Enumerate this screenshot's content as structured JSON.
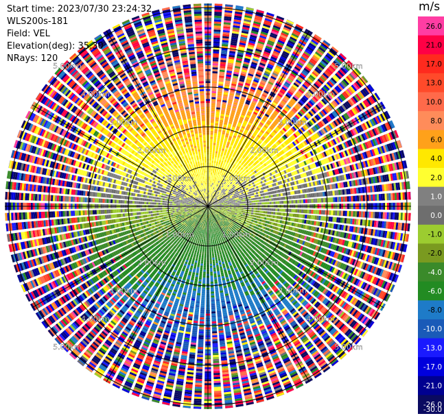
{
  "header": {
    "start_time": "Start time: 2023/07/30 23:24:32",
    "instrument": "WLS200s-181",
    "field": "Field: VEL",
    "elevation": "Elevation(deg): 35.30",
    "nrays": "NRays: 120"
  },
  "colorbar": {
    "unit": "m/s",
    "bins": [
      {
        "label": "26.0",
        "color": "#ff3da3"
      },
      {
        "label": "21.0",
        "color": "#ff0045"
      },
      {
        "label": "17.0",
        "color": "#ff2a1e"
      },
      {
        "label": "13.0",
        "color": "#ff4a2a"
      },
      {
        "label": "10.0",
        "color": "#ff6a4a"
      },
      {
        "label": "8.0",
        "color": "#ff8c5a"
      },
      {
        "label": "6.0",
        "color": "#ffa11a"
      },
      {
        "label": "4.0",
        "color": "#ffe800"
      },
      {
        "label": "2.0",
        "color": "#ffff30"
      },
      {
        "label": "1.0",
        "color": "#808080"
      },
      {
        "label": "0.0",
        "color": "#6e6e6e"
      },
      {
        "label": "-1.0",
        "color": "#9ccc30"
      },
      {
        "label": "-2.0",
        "color": "#7a9a20"
      },
      {
        "label": "-4.0",
        "color": "#3a8a2a"
      },
      {
        "label": "-6.0",
        "color": "#228b22"
      },
      {
        "label": "-8.0",
        "color": "#1e7bc8"
      },
      {
        "label": "-10.0",
        "color": "#1a5ab8"
      },
      {
        "label": "-13.0",
        "color": "#1a1aff"
      },
      {
        "label": "-17.0",
        "color": "#0000dd"
      },
      {
        "label": "-21.0",
        "color": "#000090"
      },
      {
        "label": "-26.0",
        "color": "#0a0a60"
      },
      {
        "label": "-30.0",
        "color": "#0a0a60"
      }
    ]
  },
  "chart_data": {
    "type": "heatmap",
    "plot": "PPI (plan position indicator)",
    "field": "VEL",
    "units": "m/s",
    "n_rays": 120,
    "elevation_deg": 35.3,
    "range_rings_km": [
      1.0,
      2.0,
      3.0,
      4.0,
      5.0
    ],
    "ring_labels": [
      "1.00km",
      "2.00km",
      "3.00km",
      "4.00km",
      "5.00km"
    ],
    "azimuth_spokes_deg": [
      0,
      30,
      60,
      90,
      120,
      150,
      180,
      210,
      240,
      270,
      300,
      330
    ],
    "color_scale": {
      "min": -30.0,
      "max": 26.0
    },
    "velocity_pattern": {
      "north_sector": "positive (2 to 10 m/s) near center",
      "south_sector": "negative (-2 to -10 m/s) near center",
      "outer_ranges": "noisy / mixed values"
    }
  }
}
